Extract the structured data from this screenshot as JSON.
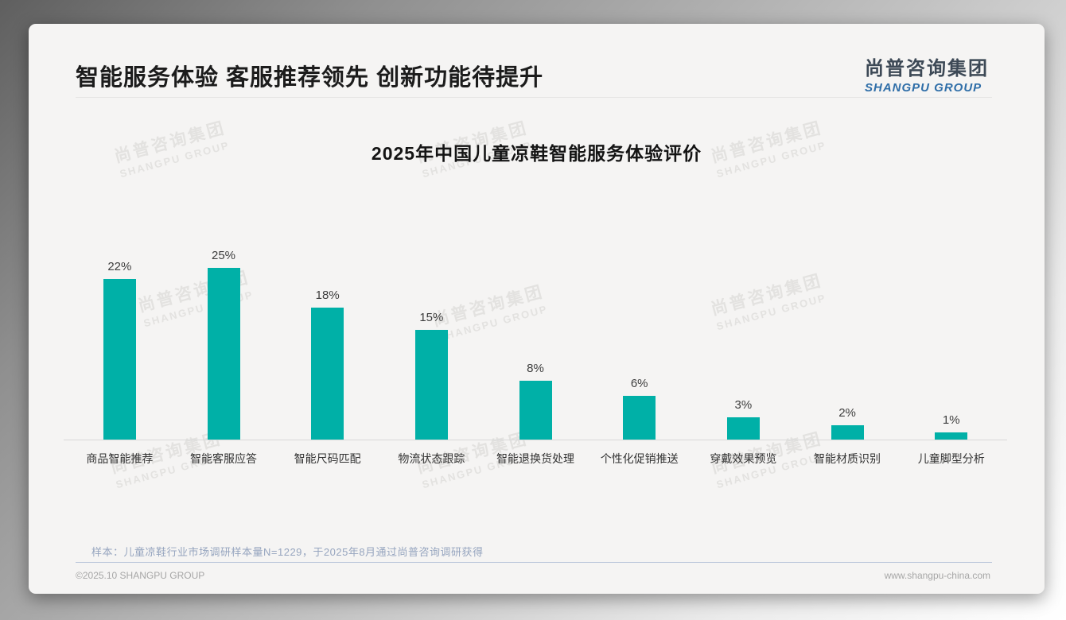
{
  "header": {
    "title": "智能服务体验 客服推荐领先 创新功能待提升",
    "logo": {
      "cn": "尚普咨询集团",
      "en": "SHANGPU GROUP"
    }
  },
  "chart_data": {
    "type": "bar",
    "title": "2025年中国儿童凉鞋智能服务体验评价",
    "categories": [
      "商品智能推荐",
      "智能客服应答",
      "智能尺码匹配",
      "物流状态跟踪",
      "智能退换货处理",
      "个性化促销推送",
      "穿戴效果预览",
      "智能材质识别",
      "儿童脚型分析"
    ],
    "values": [
      22,
      25,
      18,
      15,
      8,
      6,
      3,
      2,
      1
    ],
    "unit": "%",
    "xlabel": "",
    "ylabel": "",
    "ylim": [
      0,
      25
    ],
    "grid": false,
    "legend": "none",
    "bar_color": "#00b0a7",
    "label_format": "{value}%"
  },
  "watermark": {
    "cn": "尚普咨询集团",
    "en": "SHANGPU GROUP"
  },
  "footnote": "样本：儿童凉鞋行业市场调研样本量N=1229，于2025年8月通过尚普咨询调研获得",
  "footer": {
    "copyright": "©2025.10 SHANGPU GROUP",
    "website": "www.shangpu-china.com"
  }
}
